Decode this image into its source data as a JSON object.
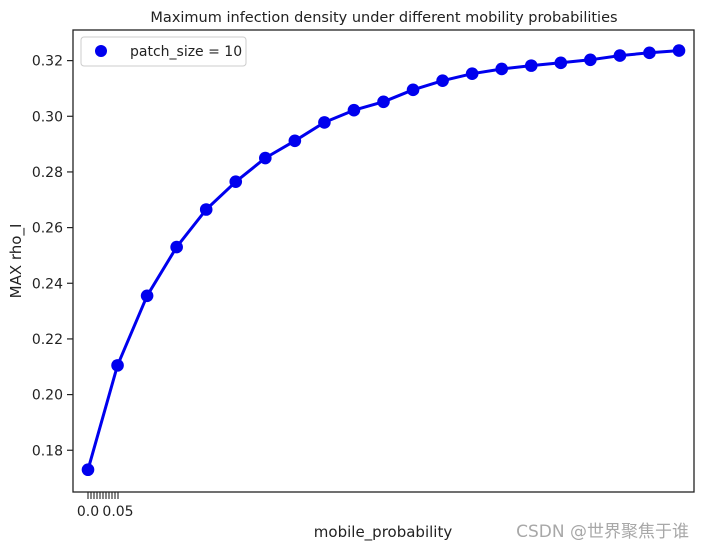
{
  "chart_data": {
    "type": "line",
    "title": "Maximum infection density under different mobility probabilities",
    "xlabel": "mobile_probability",
    "ylabel": "MAX rho_I",
    "x": [
      0.0,
      0.005,
      0.01,
      0.015,
      0.02,
      0.025,
      0.03,
      0.035,
      0.04,
      0.045,
      0.05,
      0.055,
      0.06,
      0.065,
      0.07,
      0.075,
      0.08,
      0.085,
      0.09,
      0.095,
      0.1
    ],
    "x_tick_labels": [
      "0.0",
      "0.05"
    ],
    "x_tick_values": [
      0.0,
      0.05
    ],
    "x_minor_ticks": [
      0.0,
      0.005,
      0.01,
      0.015,
      0.02,
      0.025,
      0.03,
      0.035,
      0.04,
      0.045,
      0.05
    ],
    "y_ticks": [
      0.18,
      0.2,
      0.22,
      0.24,
      0.26,
      0.28,
      0.3,
      0.32
    ],
    "y_tick_labels": [
      "0.18",
      "0.20",
      "0.22",
      "0.24",
      "0.26",
      "0.28",
      "0.30",
      "0.32"
    ],
    "ylim": [
      0.165,
      0.331
    ],
    "series": [
      {
        "name": "patch_size = 10",
        "color": "#0000ee",
        "marker": "circle",
        "values": [
          0.173,
          0.2105,
          0.2355,
          0.253,
          0.2665,
          0.2765,
          0.285,
          0.2912,
          0.2978,
          0.3022,
          0.3052,
          0.3095,
          0.3128,
          0.3153,
          0.317,
          0.3182,
          0.3192,
          0.3203,
          0.3218,
          0.3228,
          0.3236
        ]
      }
    ],
    "legend": {
      "position": "top-left"
    },
    "grid": false
  },
  "watermark": "CSDN @世界聚焦于谁"
}
